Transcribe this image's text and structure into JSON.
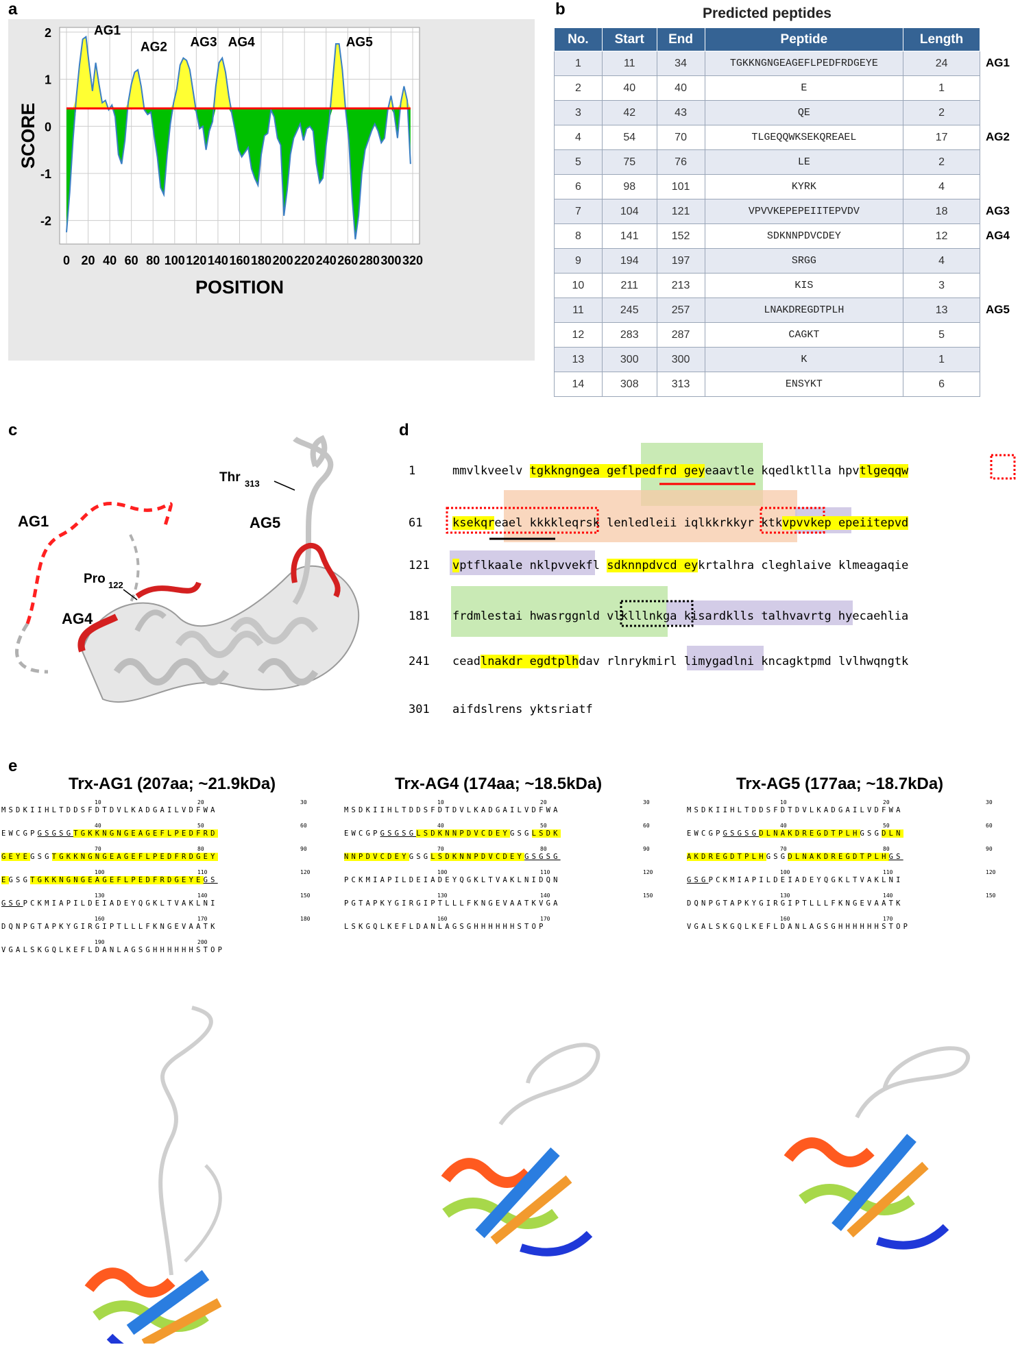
{
  "panel_labels": {
    "a": "a",
    "b": "b",
    "c": "c",
    "d": "d",
    "e": "e"
  },
  "panel_a": {
    "ylabel": "SCORE",
    "xlabel": "POSITION",
    "y_ticks": [
      "2",
      "1",
      "0",
      "-1",
      "-2"
    ],
    "x_ticks": [
      "0",
      "20",
      "40",
      "60",
      "80",
      "100",
      "120",
      "140",
      "160",
      "180",
      "200",
      "220",
      "240",
      "260",
      "280",
      "300",
      "320"
    ],
    "peak_labels": [
      "AG1",
      "AG2",
      "AG3",
      "AG4",
      "AG5"
    ],
    "colors": {
      "above": "#ffff33",
      "below": "#00c000",
      "line": "#3b7fc4",
      "threshold": "#ff0000"
    }
  },
  "chart_data": {
    "type": "area",
    "title": "",
    "xlabel": "POSITION",
    "ylabel": "SCORE",
    "xlim": [
      0,
      320
    ],
    "ylim": [
      -2.5,
      2.1
    ],
    "threshold": 0.38,
    "series": [
      {
        "x": [
          0,
          3,
          6,
          9,
          12,
          15,
          18,
          21,
          24,
          27,
          30,
          33,
          36,
          39,
          42,
          45,
          48,
          51,
          54,
          57,
          60,
          63,
          66,
          69,
          72,
          75,
          78,
          81,
          84,
          87,
          90,
          93,
          96,
          99,
          102,
          105,
          108,
          111,
          114,
          117,
          120,
          123,
          126,
          129,
          132,
          135,
          138,
          141,
          144,
          147,
          150,
          153,
          156,
          159,
          162,
          165,
          168,
          171,
          174,
          177,
          180,
          183,
          186,
          189,
          192,
          195,
          198,
          201,
          204,
          207,
          210,
          213,
          216,
          219,
          222,
          225,
          228,
          231,
          234,
          237,
          240,
          243,
          246,
          249,
          252,
          255,
          258,
          261,
          264,
          267,
          270,
          273,
          276,
          279,
          282,
          285,
          288,
          291,
          294,
          297,
          300,
          303,
          306,
          309,
          312,
          315,
          318
        ],
        "values": [
          -2.25,
          -1.4,
          -0.3,
          0.6,
          1.3,
          1.85,
          1.9,
          1.3,
          0.75,
          1.35,
          0.9,
          0.5,
          0.55,
          0.35,
          0.45,
          0.2,
          -0.6,
          -0.8,
          -0.3,
          0.5,
          0.9,
          1.15,
          1.2,
          0.85,
          0.35,
          0.25,
          0.3,
          -0.2,
          -0.65,
          -1.3,
          -1.45,
          -0.6,
          0.05,
          0.5,
          0.8,
          1.3,
          1.45,
          1.4,
          1.2,
          0.75,
          0.3,
          -0.05,
          0.0,
          -0.5,
          -0.1,
          0.1,
          0.85,
          1.35,
          1.45,
          1.15,
          0.65,
          0.25,
          -0.1,
          -0.5,
          -0.65,
          -0.55,
          -0.45,
          -0.9,
          -1.1,
          -1.25,
          -0.6,
          -0.2,
          -0.15,
          0.35,
          0.2,
          -0.25,
          -0.4,
          -1.9,
          -1.35,
          -0.6,
          -0.25,
          -0.1,
          0.05,
          -0.3,
          -0.05,
          0.0,
          -0.1,
          -0.8,
          -1.2,
          -1.1,
          -0.4,
          0.15,
          0.95,
          1.75,
          1.75,
          1.2,
          0.35,
          -0.3,
          -1.5,
          -2.4,
          -1.9,
          -1.0,
          -0.5,
          -0.3,
          -0.1,
          0.05,
          -0.1,
          -0.35,
          -0.25,
          0.35,
          0.65,
          0.25,
          -0.25,
          0.5,
          0.85,
          0.55,
          -0.8
        ]
      }
    ]
  },
  "panel_b": {
    "title": "Predicted peptides",
    "headers": [
      "No.",
      "Start",
      "End",
      "Peptide",
      "Length"
    ],
    "rows": [
      [
        "1",
        "11",
        "34",
        "TGKKNGNGEAGEFLPEDFRDGEYE",
        "24"
      ],
      [
        "2",
        "40",
        "40",
        "E",
        "1"
      ],
      [
        "3",
        "42",
        "43",
        "QE",
        "2"
      ],
      [
        "4",
        "54",
        "70",
        "TLGEQQWKSEKQREAEL",
        "17"
      ],
      [
        "5",
        "75",
        "76",
        "LE",
        "2"
      ],
      [
        "6",
        "98",
        "101",
        "KYRK",
        "4"
      ],
      [
        "7",
        "104",
        "121",
        "VPVVKEPEPEIITEPVDV",
        "18"
      ],
      [
        "8",
        "141",
        "152",
        "SDKNNPDVCDEY",
        "12"
      ],
      [
        "9",
        "194",
        "197",
        "SRGG",
        "4"
      ],
      [
        "10",
        "211",
        "213",
        "KIS",
        "3"
      ],
      [
        "11",
        "245",
        "257",
        "LNAKDREGDTPLH",
        "13"
      ],
      [
        "12",
        "283",
        "287",
        "CAGKT",
        "5"
      ],
      [
        "13",
        "300",
        "300",
        "K",
        "1"
      ],
      [
        "14",
        "308",
        "313",
        "ENSYKT",
        "6"
      ]
    ],
    "ag_tags": [
      {
        "row": 0,
        "label": "AG1"
      },
      {
        "row": 3,
        "label": "AG2"
      },
      {
        "row": 6,
        "label": "AG3"
      },
      {
        "row": 7,
        "label": "AG4"
      },
      {
        "row": 10,
        "label": "AG5"
      }
    ]
  },
  "panel_c": {
    "labels": [
      "AG1",
      "AG4",
      "AG5",
      "Thr",
      "313",
      "Pro",
      "122"
    ]
  },
  "panel_d": {
    "lines": [
      {
        "num": "1",
        "segs": [
          [
            "mmvlkveelv ",
            ""
          ],
          [
            "tgkkngngea geflpedfrd gey",
            "y"
          ],
          [
            "eaavtle kqedlktlla hpv",
            ""
          ],
          [
            "tlgeqqw",
            "y"
          ]
        ]
      },
      {
        "num": "61",
        "segs": [
          [
            "ksekqr",
            "y"
          ],
          [
            "eael kkkkleqrsk lenledleii iqlkkrkkyr ktk",
            ""
          ],
          [
            "vpvvkep epeiitepvd",
            "y"
          ]
        ]
      },
      {
        "num": "121",
        "segs": [
          [
            "v",
            "y"
          ],
          [
            "ptflkaale nkl",
            ""
          ],
          [
            "",
            ""
          ],
          [
            "pvvekfl ",
            ""
          ],
          [
            "sdknnpdvcd ey",
            "y"
          ],
          [
            "krtalhra cleghlaive klmeagaqie",
            ""
          ]
        ]
      },
      {
        "num": "181",
        "segs": [
          [
            "frdmlestai hwasrggnld vlklllnkga kisardklls tal",
            ""
          ],
          [
            "hvavrtg hyecaehlia",
            ""
          ]
        ]
      },
      {
        "num": "241",
        "segs": [
          [
            "cead",
            ""
          ],
          [
            "lnakdr egdtplh",
            "y"
          ],
          [
            "dav rlnrykmirl limygadlni kncagktpmd lvlhwqngtk",
            ""
          ]
        ]
      },
      {
        "num": "301",
        "segs": [
          [
            "aifdslrens yktsriatf",
            ""
          ]
        ]
      }
    ]
  },
  "panel_e": {
    "constructs": [
      {
        "title": "Trx-AG1 (207aa; ~21.9kDa)",
        "rows": [
          {
            "ticks": [
              "10",
              "20",
              "30"
            ],
            "segs": [
              [
                "MSDKIIHLTDDSFDTDVLKADGAILVDFWA",
                ""
              ]
            ]
          },
          {
            "ticks": [
              "40",
              "50",
              "60"
            ],
            "segs": [
              [
                "EWCGP",
                ""
              ],
              [
                "GSGSG",
                "u"
              ],
              [
                "TGKKNGNGEAGEFLPEDFRD",
                "y"
              ]
            ]
          },
          {
            "ticks": [
              "70",
              "80",
              "90"
            ],
            "segs": [
              [
                "GEYE",
                "y"
              ],
              [
                "GSG",
                ""
              ],
              [
                "TGKKNGNGEAGEFLPEDFRDGEY",
                "y"
              ]
            ]
          },
          {
            "ticks": [
              "100",
              "110",
              "120"
            ],
            "segs": [
              [
                "E",
                "y"
              ],
              [
                "GSG",
                ""
              ],
              [
                "TGKKNGNGEAGEFLPEDFRDGEYE",
                "y"
              ],
              [
                "GS",
                "u"
              ]
            ]
          },
          {
            "ticks": [
              "130",
              "140",
              "150"
            ],
            "segs": [
              [
                "GSG",
                "u"
              ],
              [
                "PCKMIAPILDEIADEYQGKLTVAKLNI",
                ""
              ]
            ]
          },
          {
            "ticks": [
              "160",
              "170",
              "180"
            ],
            "segs": [
              [
                "DQNPGTAPKYGIRGIPTLLLFKNGEVAATK",
                ""
              ]
            ]
          },
          {
            "ticks": [
              "190",
              "200"
            ],
            "segs": [
              [
                "VGALSKGQLKEFLDANLAGSGHHHHHH",
                ""
              ],
              [
                "STOP",
                ""
              ]
            ]
          }
        ]
      },
      {
        "title": "Trx-AG4 (174aa; ~18.5kDa)",
        "rows": [
          {
            "ticks": [
              "10",
              "20",
              "30"
            ],
            "segs": [
              [
                "MSDKIIHLTDDSFDTDVLKADGAILVDFWA",
                ""
              ]
            ]
          },
          {
            "ticks": [
              "40",
              "50",
              "60"
            ],
            "segs": [
              [
                "EWCGP",
                ""
              ],
              [
                "GSGSG",
                "u"
              ],
              [
                "LSDKNNPDVCDEY",
                "y"
              ],
              [
                "GSG",
                ""
              ],
              [
                "LSDK",
                "y"
              ]
            ]
          },
          {
            "ticks": [
              "70",
              "80",
              "90"
            ],
            "segs": [
              [
                "NNPDVCDEY",
                "y"
              ],
              [
                "GSG",
                ""
              ],
              [
                "LSDKNNPDVCDEY",
                "y"
              ],
              [
                "GSGSG",
                "u"
              ]
            ]
          },
          {
            "ticks": [
              "100",
              "110",
              "120"
            ],
            "segs": [
              [
                "PCKMIAPILDEIADEYQGKLTVAKLNIDQN",
                ""
              ]
            ]
          },
          {
            "ticks": [
              "130",
              "140",
              "150"
            ],
            "segs": [
              [
                "PGTAPKYGIRGIPTLLLFKNGEVAATKVGA",
                ""
              ]
            ]
          },
          {
            "ticks": [
              "160",
              "170"
            ],
            "segs": [
              [
                "LSKGQLKEFLDANLAGSGHHHHHH",
                ""
              ],
              [
                "STOP",
                ""
              ]
            ]
          }
        ]
      },
      {
        "title": "Trx-AG5 (177aa; ~18.7kDa)",
        "rows": [
          {
            "ticks": [
              "10",
              "20",
              "30"
            ],
            "segs": [
              [
                "MSDKIIHLTDDSFDTDVLKADGAILVDFWA",
                ""
              ]
            ]
          },
          {
            "ticks": [
              "40",
              "50",
              "60"
            ],
            "segs": [
              [
                "EWCGP",
                ""
              ],
              [
                "GSGSG",
                "u"
              ],
              [
                "DLNAKDREGDTPLH",
                "y"
              ],
              [
                "GSG",
                ""
              ],
              [
                "DLN",
                "y"
              ]
            ]
          },
          {
            "ticks": [
              "70",
              "80",
              "90"
            ],
            "segs": [
              [
                "AKDREGDTPLH",
                "y"
              ],
              [
                "GSG",
                ""
              ],
              [
                "DLNAKDREGDTPLH",
                "y"
              ],
              [
                "GS",
                "u"
              ]
            ]
          },
          {
            "ticks": [
              "100",
              "110",
              "120"
            ],
            "segs": [
              [
                "GSG",
                "u"
              ],
              [
                "PCKMIAPILDEIADEYQGKLTVAKLNI",
                ""
              ]
            ]
          },
          {
            "ticks": [
              "130",
              "140",
              "150"
            ],
            "segs": [
              [
                "DQNPGTAPKYGIRGIPTLLLFKNGEVAATK",
                ""
              ]
            ]
          },
          {
            "ticks": [
              "160",
              "170"
            ],
            "segs": [
              [
                "VGALSKGQLKEFLDANLAGSGHHHHHH",
                ""
              ],
              [
                "STOP",
                ""
              ]
            ]
          }
        ]
      }
    ]
  }
}
